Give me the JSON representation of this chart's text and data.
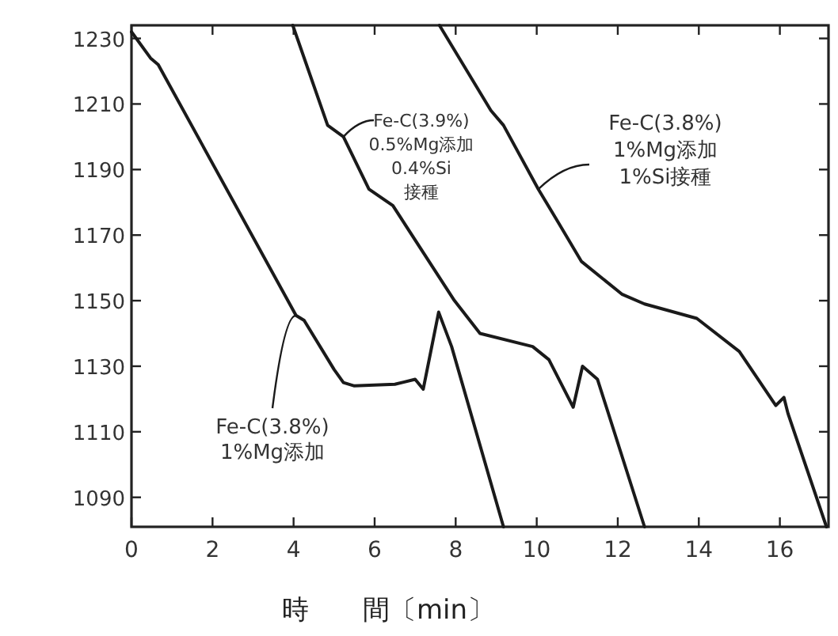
{
  "chart_data": {
    "type": "line",
    "xlabel": "時　　間〔min〕",
    "xlim": [
      0,
      17.2
    ],
    "ylim": [
      1081,
      1234
    ],
    "xticks": [
      0,
      2,
      4,
      6,
      8,
      10,
      12,
      14,
      16
    ],
    "yticks": [
      1090,
      1110,
      1130,
      1150,
      1170,
      1190,
      1210,
      1230
    ],
    "grid": false,
    "marker": "none",
    "line_style": "solid",
    "series": [
      {
        "name": "Fe-C(3.8%)\n1%Mg添加",
        "color": "#1a1a1a",
        "x": [
          0,
          0.47,
          0.66,
          4.06,
          4.26,
          5.0,
          5.23,
          5.5,
          6.5,
          7.0,
          7.2,
          7.58,
          7.9,
          9.18
        ],
        "values": [
          1232,
          1224,
          1222,
          1145.5,
          1144,
          1129,
          1125,
          1124,
          1124.5,
          1126,
          1123,
          1146.5,
          1136,
          1081
        ]
      },
      {
        "name": "Fe-C(3.9%)\n0.5%Mg添加\n0.4%Si\n接種",
        "color": "#1a1a1a",
        "x": [
          3.98,
          4.84,
          5.23,
          5.86,
          6.45,
          7.97,
          8.6,
          9.9,
          10.3,
          10.9,
          11.13,
          11.5,
          12.66
        ],
        "values": [
          1234,
          1203.5,
          1200,
          1184,
          1179,
          1150,
          1140,
          1136,
          1132,
          1117.5,
          1130,
          1126,
          1081
        ]
      },
      {
        "name": "Fe-C(3.8%)\n1%Mg添加\n1%Si接種",
        "color": "#1a1a1a",
        "x": [
          7.6,
          8.87,
          9.18,
          10.04,
          10.55,
          11.1,
          12.1,
          12.66,
          13.95,
          15.0,
          15.9,
          16.1,
          16.2,
          17.15
        ],
        "values": [
          1234,
          1208,
          1203.5,
          1184,
          1173.5,
          1162,
          1152,
          1149,
          1144.6,
          1134.5,
          1118,
          1120.5,
          1115.6,
          1081
        ]
      }
    ]
  }
}
